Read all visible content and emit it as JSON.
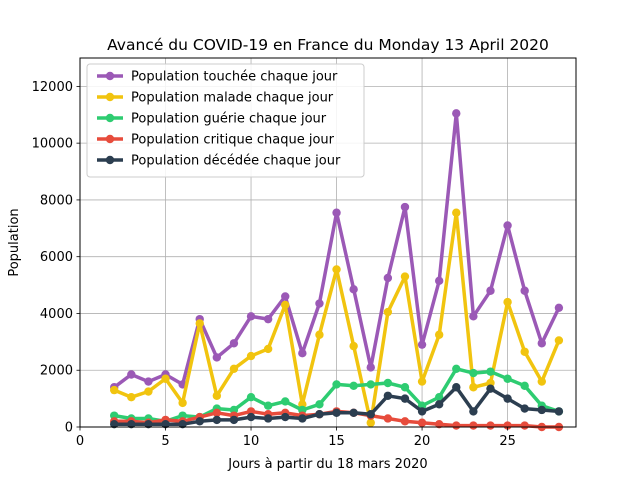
{
  "chart_data": {
    "type": "line",
    "title": "Avancé du COVID-19 en France du Monday 13 April 2020",
    "xlabel": "Jours à partir du 18 mars 2020",
    "ylabel": "Population",
    "xlim": [
      0,
      29
    ],
    "ylim": [
      0,
      13000
    ],
    "xticks": [
      0,
      5,
      10,
      15,
      20,
      25
    ],
    "yticks": [
      0,
      2000,
      4000,
      6000,
      8000,
      10000,
      12000
    ],
    "grid": true,
    "legend_position": "top-left",
    "x": [
      2,
      3,
      4,
      5,
      6,
      7,
      8,
      9,
      10,
      11,
      12,
      13,
      14,
      15,
      16,
      17,
      18,
      19,
      20,
      21,
      22,
      23,
      24,
      25,
      26,
      27,
      28
    ],
    "series": [
      {
        "name": "Population touchée chaque jour",
        "color": "#9b59b6",
        "values": [
          1400,
          1850,
          1600,
          1850,
          1500,
          3800,
          2450,
          2950,
          3900,
          3800,
          4600,
          2600,
          4350,
          7550,
          4850,
          2100,
          5250,
          7750,
          2900,
          5150,
          11050,
          3900,
          4800,
          7100,
          4800,
          2950,
          4200
        ]
      },
      {
        "name": "Population malade chaque jour",
        "color": "#f1c40f",
        "values": [
          1300,
          1050,
          1250,
          1700,
          850,
          3650,
          1100,
          2050,
          2500,
          2750,
          4300,
          800,
          3250,
          5550,
          2850,
          150,
          4050,
          5300,
          1600,
          3250,
          7550,
          1400,
          1550,
          4400,
          2650,
          1600,
          3050
        ]
      },
      {
        "name": "Population guérie chaque jour",
        "color": "#2ecc71",
        "values": [
          400,
          300,
          300,
          200,
          400,
          350,
          650,
          600,
          1050,
          750,
          900,
          600,
          800,
          1500,
          1450,
          1500,
          1550,
          1400,
          750,
          1050,
          2050,
          1900,
          1950,
          1700,
          1450,
          750,
          550
        ]
      },
      {
        "name": "Population critique chaque jour",
        "color": "#e74c3c",
        "values": [
          200,
          200,
          150,
          250,
          200,
          350,
          500,
          400,
          550,
          450,
          500,
          400,
          450,
          550,
          500,
          400,
          300,
          200,
          150,
          100,
          50,
          50,
          50,
          50,
          50,
          0,
          0
        ]
      },
      {
        "name": "Population décédée chaque jour",
        "color": "#2c3e50",
        "values": [
          100,
          100,
          100,
          100,
          100,
          200,
          250,
          250,
          350,
          300,
          350,
          300,
          450,
          500,
          500,
          450,
          1100,
          1000,
          550,
          800,
          1400,
          550,
          1350,
          1000,
          650,
          600,
          550
        ]
      }
    ]
  }
}
